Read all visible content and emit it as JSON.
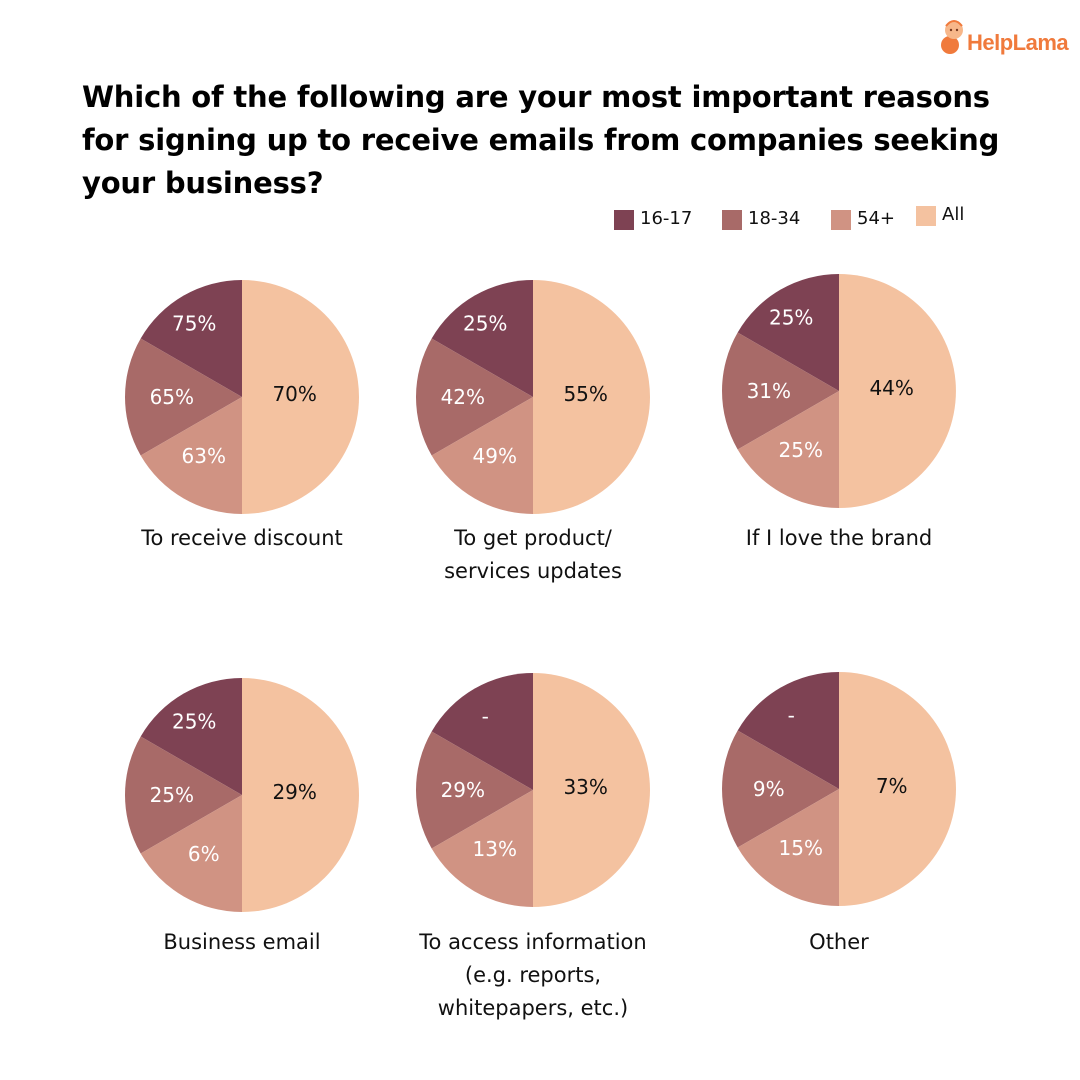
{
  "brand": {
    "name": "HelpLama",
    "accent_color": "#f07a3c",
    "logo_icon": "lama-mascot-icon"
  },
  "chart_data": {
    "type": "pie",
    "title": "Which of the following are your most important reasons for signing up to receive emails from companies seeking your business?",
    "legend": {
      "placement": "top-right",
      "entries": [
        {
          "label": "16-17",
          "color": "#7e4253"
        },
        {
          "label": "18-34",
          "color": "#a86a68"
        },
        {
          "label": "54+",
          "color": "#d09383"
        },
        {
          "label": "All",
          "color": "#f4c2a0"
        }
      ]
    },
    "pies": [
      {
        "label": "To receive discount",
        "values": {
          "16-17": "75%",
          "18-34": "65%",
          "54+": "63%",
          "All": "70%"
        }
      },
      {
        "label": "To get product/\nservices updates",
        "values": {
          "16-17": "25%",
          "18-34": "42%",
          "54+": "49%",
          "All": "55%"
        }
      },
      {
        "label": "If I love the brand",
        "values": {
          "16-17": "25%",
          "18-34": "31%",
          "54+": "25%",
          "All": "44%"
        }
      },
      {
        "label": "Business email",
        "values": {
          "16-17": "25%",
          "18-34": "25%",
          "54+": "6%",
          "All": "29%"
        }
      },
      {
        "label": "To access information\n(e.g. reports,\nwhitepapers, etc.)",
        "values": {
          "16-17": "-",
          "18-34": "29%",
          "54+": "13%",
          "All": "33%"
        }
      },
      {
        "label": "Other",
        "values": {
          "16-17": "-",
          "18-34": "9%",
          "54+": "15%",
          "All": "7%"
        }
      }
    ]
  }
}
